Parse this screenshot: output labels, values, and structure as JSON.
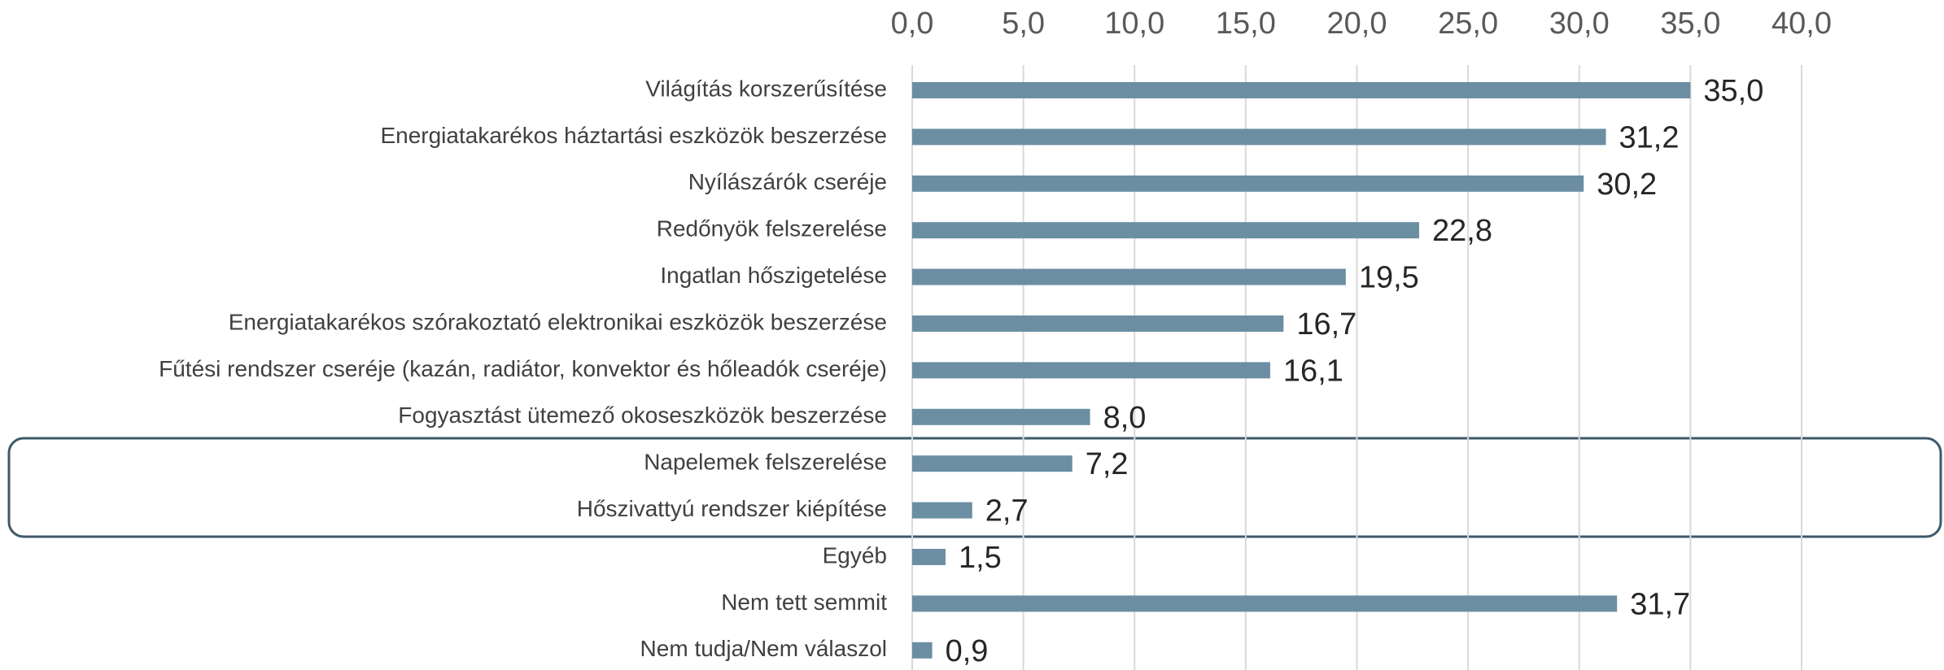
{
  "chart_data": {
    "type": "bar",
    "orientation": "horizontal",
    "categories": [
      "Világítás korszerűsítése",
      "Energiatakarékos háztartási eszközök beszerzése",
      "Nyílászárók cseréje",
      "Redőnyök felszerelése",
      "Ingatlan hőszigetelése",
      "Energiatakarékos szórakoztató elektronikai eszközök beszerzése",
      "Fűtési rendszer cseréje (kazán, radiátor, konvektor és hőleadók cseréje)",
      "Fogyasztást ütemező okoseszközök beszerzése",
      "Napelemek felszerelése",
      "Hőszivattyú rendszer kiépítése",
      "Egyéb",
      "Nem tett semmit",
      "Nem tudja/Nem válaszol"
    ],
    "values": [
      35.0,
      31.2,
      30.2,
      22.8,
      19.5,
      16.7,
      16.1,
      8.0,
      7.2,
      2.7,
      1.5,
      31.7,
      0.9
    ],
    "value_labels": [
      "35,0",
      "31,2",
      "30,2",
      "22,8",
      "19,5",
      "16,7",
      "16,1",
      "8,0",
      "7,2",
      "2,7",
      "1,5",
      "31,7",
      "0,9"
    ],
    "color": "#6b8ea3",
    "xlim": [
      0,
      40
    ],
    "xticks": [
      {
        "value": 0,
        "label": "0,0"
      },
      {
        "value": 5,
        "label": "5,0"
      },
      {
        "value": 10,
        "label": "10,0"
      },
      {
        "value": 15,
        "label": "15,0"
      },
      {
        "value": 20,
        "label": "20,0"
      },
      {
        "value": 25,
        "label": "25,0"
      },
      {
        "value": 30,
        "label": "30,0"
      },
      {
        "value": 35,
        "label": "35,0"
      },
      {
        "value": 40,
        "label": "40,0"
      }
    ],
    "grid": true
  }
}
